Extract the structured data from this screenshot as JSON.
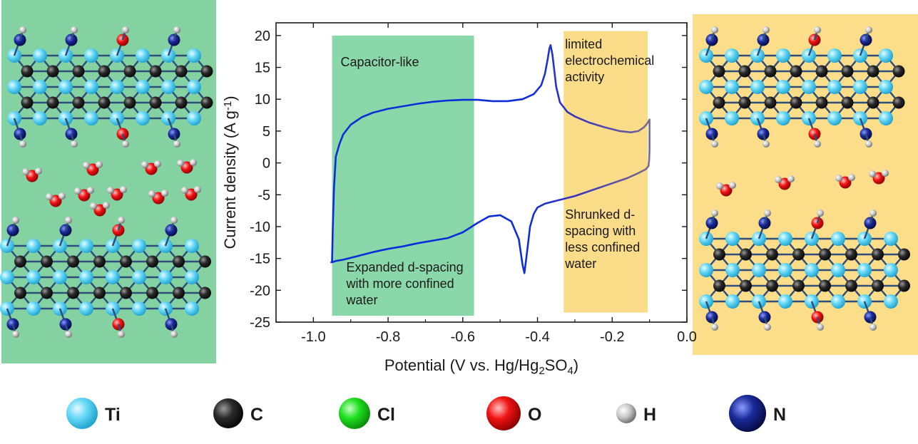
{
  "chart_data": {
    "type": "line",
    "title": "",
    "xlabel": "Potential (V vs. Hg/Hg",
    "xlabel_sub1": "2",
    "xlabel_mid": "SO",
    "xlabel_sub2": "4",
    "xlabel_end": ")",
    "ylabel": "Current density (A g",
    "ylabel_sup": "-1",
    "ylabel_end": ")",
    "xlim": [
      -1.1,
      0.0
    ],
    "ylim": [
      -25,
      22
    ],
    "xticks": [
      -1.0,
      -0.8,
      -0.6,
      -0.4,
      -0.2,
      0.0
    ],
    "xtick_labels": [
      "-1.0",
      "-0.8",
      "-0.6",
      "-0.4",
      "-0.2",
      "0.0"
    ],
    "yticks": [
      20,
      15,
      10,
      5,
      0,
      -5,
      -10,
      -15,
      -20,
      -25
    ],
    "ytick_labels": [
      "20",
      "15",
      "10",
      "5",
      "0",
      "-5",
      "-10",
      "-15",
      "-20",
      "-25"
    ],
    "series": [
      {
        "color_start": "#0a2dd8",
        "color_end": "#7b6a8e",
        "x": [
          -0.95,
          -0.948,
          -0.945,
          -0.94,
          -0.93,
          -0.92,
          -0.9,
          -0.87,
          -0.84,
          -0.8,
          -0.76,
          -0.72,
          -0.68,
          -0.64,
          -0.6,
          -0.56,
          -0.52,
          -0.48,
          -0.44,
          -0.41,
          -0.39,
          -0.38,
          -0.373,
          -0.368,
          -0.365,
          -0.36,
          -0.355,
          -0.35,
          -0.34,
          -0.32,
          -0.3,
          -0.26,
          -0.22,
          -0.18,
          -0.15,
          -0.13,
          -0.115,
          -0.105,
          -0.1,
          -0.1,
          -0.101,
          -0.103,
          -0.11,
          -0.13,
          -0.16,
          -0.2,
          -0.25,
          -0.3,
          -0.34,
          -0.38,
          -0.4,
          -0.41,
          -0.42,
          -0.425,
          -0.43,
          -0.435,
          -0.44,
          -0.45,
          -0.47,
          -0.5,
          -0.53,
          -0.56,
          -0.6,
          -0.64,
          -0.68,
          -0.72,
          -0.76,
          -0.8,
          -0.84,
          -0.88,
          -0.92,
          -0.94,
          -0.95,
          -0.952,
          -0.95
        ],
        "y": [
          -15.6,
          -10.0,
          -4.0,
          1.0,
          3.0,
          4.5,
          6.0,
          7.2,
          7.9,
          8.5,
          8.9,
          9.3,
          9.6,
          9.8,
          9.9,
          9.9,
          9.7,
          9.7,
          10.0,
          10.8,
          12.2,
          14.0,
          16.2,
          18.0,
          18.5,
          17.0,
          14.5,
          12.0,
          9.5,
          8.0,
          7.3,
          6.3,
          5.6,
          5.0,
          4.8,
          5.0,
          5.6,
          6.3,
          6.8,
          2.0,
          0.5,
          -0.5,
          -1.0,
          -1.6,
          -2.4,
          -3.2,
          -4.2,
          -5.2,
          -5.8,
          -6.4,
          -7.0,
          -8.0,
          -10.0,
          -12.5,
          -15.0,
          -17.3,
          -16.0,
          -12.0,
          -9.2,
          -8.2,
          -8.4,
          -9.4,
          -10.9,
          -11.8,
          -12.2,
          -12.6,
          -13.1,
          -13.5,
          -14.0,
          -14.6,
          -15.2,
          -15.4,
          -15.6,
          -15.6,
          -15.6
        ]
      }
    ],
    "regions": [
      {
        "x0": -0.95,
        "x1": -0.57,
        "y0": -24,
        "y1": 20,
        "color": "#8ad8aa",
        "labels": [
          "Capacitor-like"
        ],
        "labels2": [
          "Expanded d-spacing",
          "with more confined",
          "water"
        ]
      },
      {
        "x0": -0.33,
        "x1": -0.105,
        "y0": -23.5,
        "y1": 20.7,
        "color": "#fbdc88",
        "labels": [
          "limited",
          "electrochemical",
          "activity"
        ],
        "labels2": [
          "Shrunked d-",
          "spacing with",
          "less confined",
          "water"
        ]
      }
    ],
    "grid": false
  },
  "panels": {
    "left_bg": "#84d2a2",
    "right_bg": "#fbdd8a"
  },
  "legend": [
    {
      "label": "Ti",
      "color": "#66d8f7"
    },
    {
      "label": "C",
      "color": "#2a2a2a"
    },
    {
      "label": "Cl",
      "color": "#1ee01e"
    },
    {
      "label": "O",
      "color": "#f01414"
    },
    {
      "label": "H",
      "color": "#bdbdbd"
    },
    {
      "label": "N",
      "color": "#1a2a9a"
    }
  ]
}
